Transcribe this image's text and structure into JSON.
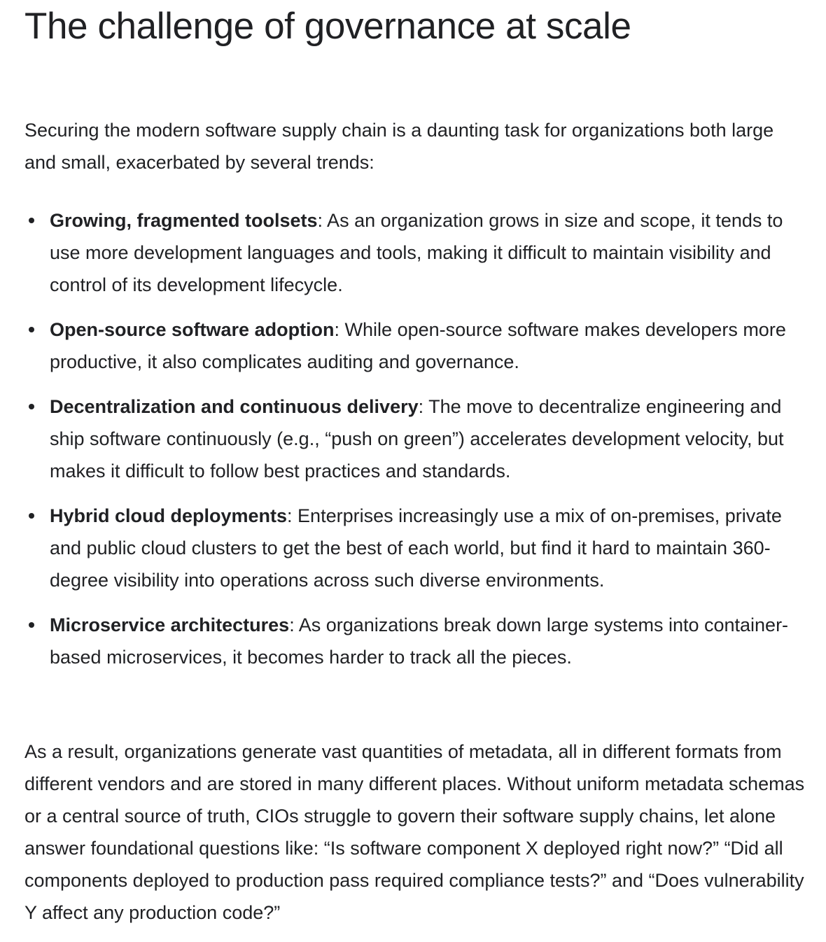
{
  "article": {
    "title": "The challenge of governance at scale",
    "intro": "Securing the modern software supply chain is a daunting task for organizations both large and small, exacerbated by several trends:",
    "trends": [
      {
        "term": "Growing, fragmented toolsets",
        "text": ": As an organization grows in size and scope, it tends to use more development languages and tools, making it difficult to maintain visibility and control of its development lifecycle."
      },
      {
        "term": "Open-source software adoption",
        "text": ": While open-source software makes developers more productive, it also complicates auditing and governance."
      },
      {
        "term": "Decentralization and continuous delivery",
        "text": ": The move to decentralize engineering and ship software continuously (e.g., “push on green”) accelerates development velocity, but makes it difficult to follow best practices and standards."
      },
      {
        "term": "Hybrid cloud deployments",
        "text": ": Enterprises increasingly use a mix of on-premises, private and public cloud clusters to get the best of each world, but find it hard to maintain 360-degree visibility into operations across such diverse environments."
      },
      {
        "term": "Microservice architectures",
        "text": ": As organizations break down large systems into container-based microservices, it becomes harder to track all the pieces."
      }
    ],
    "conclusion": "As a result, organizations generate vast quantities of metadata, all in different formats from different vendors and are stored in many different places. Without uniform metadata schemas or a central source of truth, CIOs struggle to govern their software supply chains, let alone answer foundational questions like: “Is software component X deployed right now?” “Did all components deployed to production pass required compliance tests?” and “Does vulnerability Y affect any production code?”"
  },
  "colors": {
    "text": "#202124",
    "background": "#ffffff"
  }
}
